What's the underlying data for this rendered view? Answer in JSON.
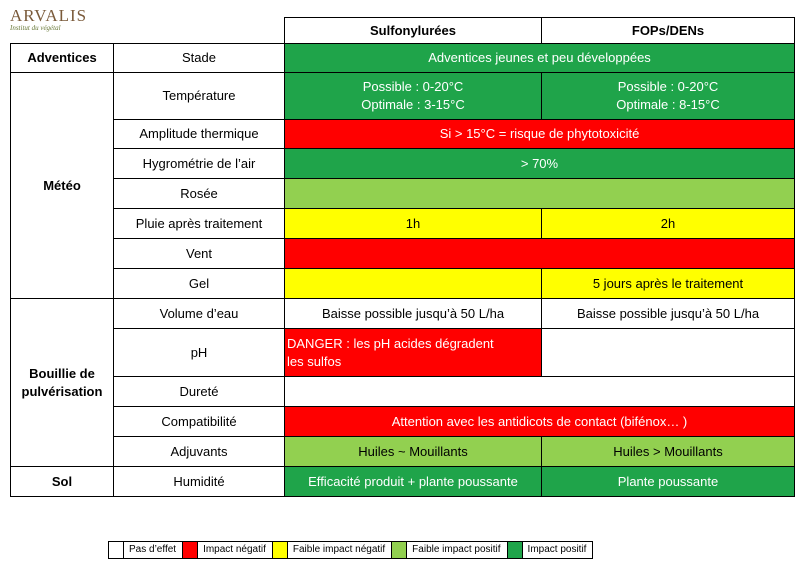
{
  "logo": {
    "name": "ARVALIS",
    "subtitle": "Institut du végétal"
  },
  "header": {
    "col1": "Sulfonylurées",
    "col2": "FOPs/DENs"
  },
  "categories": {
    "adventices": "Adventices",
    "meteo": "Météo",
    "bouillie_line1": "Bouillie de",
    "bouillie_line2": "pulvérisation",
    "sol": "Sol"
  },
  "rows": {
    "stade": {
      "label": "Stade",
      "both": "Adventices jeunes et peu développées"
    },
    "temperature": {
      "label": "Température",
      "sulfo_line1": "Possible : 0-20°C",
      "sulfo_line2": "Optimale : 3-15°C",
      "fops_line1": "Possible : 0-20°C",
      "fops_line2": "Optimale : 8-15°C"
    },
    "amplitude": {
      "label": "Amplitude thermique",
      "both": "Si > 15°C = risque de phytotoxicité"
    },
    "hygrometrie": {
      "label": "Hygrométrie de l’air",
      "both": "> 70%"
    },
    "rosee": {
      "label": "Rosée",
      "both": ""
    },
    "pluie": {
      "label": "Pluie après traitement",
      "sulfo": "1h",
      "fops": "2h"
    },
    "vent": {
      "label": "Vent",
      "both": ""
    },
    "gel": {
      "label": "Gel",
      "sulfo": "",
      "fops": "5 jours après le traitement"
    },
    "volume": {
      "label": "Volume d’eau",
      "sulfo": "Baisse possible jusqu’à 50 L/ha",
      "fops": "Baisse possible jusqu’à 50 L/ha"
    },
    "ph": {
      "label": "pH",
      "sulfo_line1": "DANGER : les pH acides dégradent",
      "sulfo_line2": "les sulfos",
      "fops": ""
    },
    "durete": {
      "label": "Dureté",
      "both": ""
    },
    "compatibilite": {
      "label": "Compatibilité",
      "both": "Attention avec les antidicots de contact (bifénox… )"
    },
    "adjuvants": {
      "label": "Adjuvants",
      "sulfo": "Huiles ~ Mouillants",
      "fops": "Huiles > Mouillants"
    },
    "humidite": {
      "label": "Humidité",
      "sulfo": "Efficacité produit + plante poussante",
      "fops": "Plante poussante"
    }
  },
  "legend": [
    {
      "label": "Pas d’effet",
      "color": "#ffffff"
    },
    {
      "label": "Impact négatif",
      "color": "#ff0000"
    },
    {
      "label": "Faible impact négatif",
      "color": "#ffff00"
    },
    {
      "label": "Faible impact positif",
      "color": "#92d050"
    },
    {
      "label": "Impact positif",
      "color": "#1fa44a"
    }
  ]
}
